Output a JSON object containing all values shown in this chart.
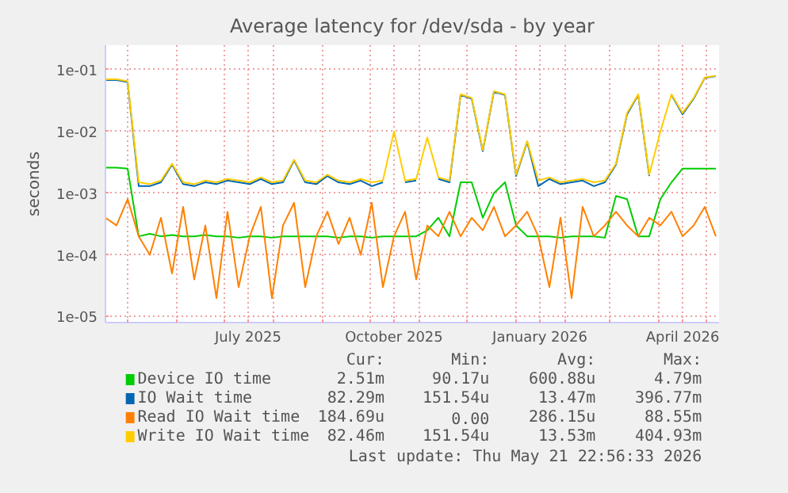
{
  "chart_data": {
    "type": "line",
    "title": "Average latency for /dev/sda - by year",
    "ylabel": "seconds",
    "log": "y",
    "grid": true,
    "legend": "bottom",
    "xlim": [
      "2025-04-17",
      "2026-05-09"
    ],
    "xticks": [
      {
        "value": "2025-05-01",
        "label": null
      },
      {
        "value": "2025-06-01",
        "label": null
      },
      {
        "value": "2025-07-01",
        "label": null
      },
      {
        "value": "2025-07-16",
        "label": "July 2025"
      },
      {
        "value": "2025-08-01",
        "label": null
      },
      {
        "value": "2025-09-01",
        "label": null
      },
      {
        "value": "2025-10-01",
        "label": null
      },
      {
        "value": "2025-10-16",
        "label": "October 2025"
      },
      {
        "value": "2025-11-01",
        "label": null
      },
      {
        "value": "2025-12-01",
        "label": null
      },
      {
        "value": "2026-01-01",
        "label": null
      },
      {
        "value": "2026-01-16",
        "label": "January 2026"
      },
      {
        "value": "2026-02-01",
        "label": null
      },
      {
        "value": "2026-03-01",
        "label": null
      },
      {
        "value": "2026-04-01",
        "label": null
      },
      {
        "value": "2026-04-16",
        "label": "April 2026"
      },
      {
        "value": "2026-05-01",
        "label": null
      }
    ],
    "ylim": [
      8e-06,
      0.25
    ],
    "yticks": [
      {
        "value": 1e-05,
        "label": "1e-05"
      },
      {
        "value": 0.0001,
        "label": "1e-04"
      },
      {
        "value": 0.001,
        "label": "1e-03"
      },
      {
        "value": 0.01,
        "label": "1e-02"
      },
      {
        "value": 0.1,
        "label": "1e-01"
      }
    ],
    "x": [
      "2025-04-17",
      "2025-04-24",
      "2025-05-01",
      "2025-05-08",
      "2025-05-15",
      "2025-05-22",
      "2025-05-29",
      "2025-06-05",
      "2025-06-12",
      "2025-06-19",
      "2025-06-26",
      "2025-07-03",
      "2025-07-10",
      "2025-07-17",
      "2025-07-24",
      "2025-07-31",
      "2025-08-07",
      "2025-08-14",
      "2025-08-21",
      "2025-08-28",
      "2025-09-04",
      "2025-09-11",
      "2025-09-18",
      "2025-09-25",
      "2025-10-02",
      "2025-10-09",
      "2025-10-16",
      "2025-10-23",
      "2025-10-30",
      "2025-11-06",
      "2025-11-13",
      "2025-11-20",
      "2025-11-27",
      "2025-12-04",
      "2025-12-11",
      "2025-12-18",
      "2025-12-25",
      "2026-01-01",
      "2026-01-08",
      "2026-01-15",
      "2026-01-22",
      "2026-01-29",
      "2026-02-05",
      "2026-02-12",
      "2026-02-19",
      "2026-02-26",
      "2026-03-05",
      "2026-03-12",
      "2026-03-19",
      "2026-03-26",
      "2026-04-02",
      "2026-04-09",
      "2026-04-16",
      "2026-04-23",
      "2026-04-30",
      "2026-05-07"
    ],
    "series": [
      {
        "name": "Device IO time",
        "color": "#00cc00",
        "values": [
          0.0026,
          0.0026,
          0.0025,
          0.0002,
          0.00022,
          0.0002,
          0.00021,
          0.0002,
          0.0002,
          0.00021,
          0.0002,
          0.0002,
          0.00019,
          0.0002,
          0.0002,
          0.00019,
          0.0002,
          0.0002,
          0.0002,
          0.0002,
          0.0002,
          0.00019,
          0.0002,
          0.0002,
          0.00019,
          0.0002,
          0.0002,
          0.0002,
          0.0002,
          0.00025,
          0.0004,
          0.0002,
          0.0015,
          0.0015,
          0.0004,
          0.001,
          0.0015,
          0.0003,
          0.0002,
          0.0002,
          0.0002,
          0.00019,
          0.0002,
          0.0002,
          0.0002,
          0.00019,
          0.0009,
          0.0008,
          0.0002,
          0.0002,
          0.0008,
          0.0015,
          0.0025,
          0.0025,
          0.0025,
          0.0025
        ]
      },
      {
        "name": "IO Wait time",
        "color": "#0066b3",
        "values": [
          0.068,
          0.068,
          0.063,
          0.0013,
          0.0013,
          0.0015,
          0.0029,
          0.0014,
          0.0013,
          0.0015,
          0.0014,
          0.0016,
          0.0015,
          0.0014,
          0.0017,
          0.0014,
          0.0015,
          0.0034,
          0.0015,
          0.0014,
          0.0019,
          0.0015,
          0.0014,
          0.0016,
          0.0013,
          0.0015,
          null,
          0.0015,
          0.0016,
          null,
          0.0017,
          0.0015,
          0.039,
          0.034,
          0.0048,
          0.044,
          0.039,
          0.0019,
          0.0068,
          0.0013,
          0.0017,
          0.0014,
          0.0015,
          0.0016,
          0.0013,
          0.0015,
          0.0029,
          0.019,
          0.039,
          0.0019,
          null,
          0.039,
          0.019,
          0.034,
          0.074,
          0.079
        ]
      },
      {
        "name": "Read IO Wait time",
        "color": "#ff8000",
        "values": [
          0.0004,
          0.0003,
          0.0008,
          0.0002,
          0.0001,
          0.0004,
          5e-05,
          0.0006,
          4e-05,
          0.0003,
          2e-05,
          0.0005,
          3e-05,
          0.0002,
          0.0006,
          2e-05,
          0.0003,
          0.0007,
          3e-05,
          0.0002,
          0.0005,
          0.00015,
          0.0004,
          0.0001,
          0.0007,
          3e-05,
          0.0002,
          0.0005,
          4e-05,
          0.0003,
          0.0002,
          0.0005,
          0.0002,
          0.0004,
          0.00025,
          0.0006,
          0.0002,
          0.0003,
          0.0005,
          0.0002,
          3e-05,
          0.0004,
          2e-05,
          0.0006,
          0.0002,
          0.0003,
          0.0005,
          0.0003,
          0.0002,
          0.0004,
          0.0003,
          0.0005,
          0.0002,
          0.0003,
          0.0006,
          0.0002
        ]
      },
      {
        "name": "Write IO Wait time",
        "color": "#ffcc00",
        "values": [
          0.07,
          0.07,
          0.065,
          0.0015,
          0.0014,
          0.0016,
          0.003,
          0.0015,
          0.0014,
          0.0016,
          0.0015,
          0.0017,
          0.0016,
          0.0015,
          0.0018,
          0.0015,
          0.0016,
          0.0035,
          0.0016,
          0.0015,
          0.002,
          0.0016,
          0.0015,
          0.0017,
          0.0015,
          0.0016,
          0.01,
          0.0016,
          0.0017,
          0.008,
          0.0018,
          0.0016,
          0.04,
          0.035,
          0.005,
          0.045,
          0.04,
          0.002,
          0.007,
          0.0016,
          0.0018,
          0.0015,
          0.0016,
          0.0017,
          0.0015,
          0.0016,
          0.003,
          0.02,
          0.04,
          0.002,
          0.01,
          0.04,
          0.02,
          0.035,
          0.075,
          0.08
        ]
      }
    ],
    "annotations": [
      "Cur:",
      "Min:",
      "Avg:",
      "Max:",
      "2.51m",
      "90.17u",
      "600.88u",
      "4.79m",
      "82.29m",
      "151.54u",
      "13.47m",
      "396.77m",
      "184.69u",
      "0.00",
      "286.15u",
      "88.55m",
      "82.46m",
      "151.54u",
      "13.53m",
      "404.93m",
      "Last update: Thu May 21 22:56:33 2026"
    ]
  }
}
